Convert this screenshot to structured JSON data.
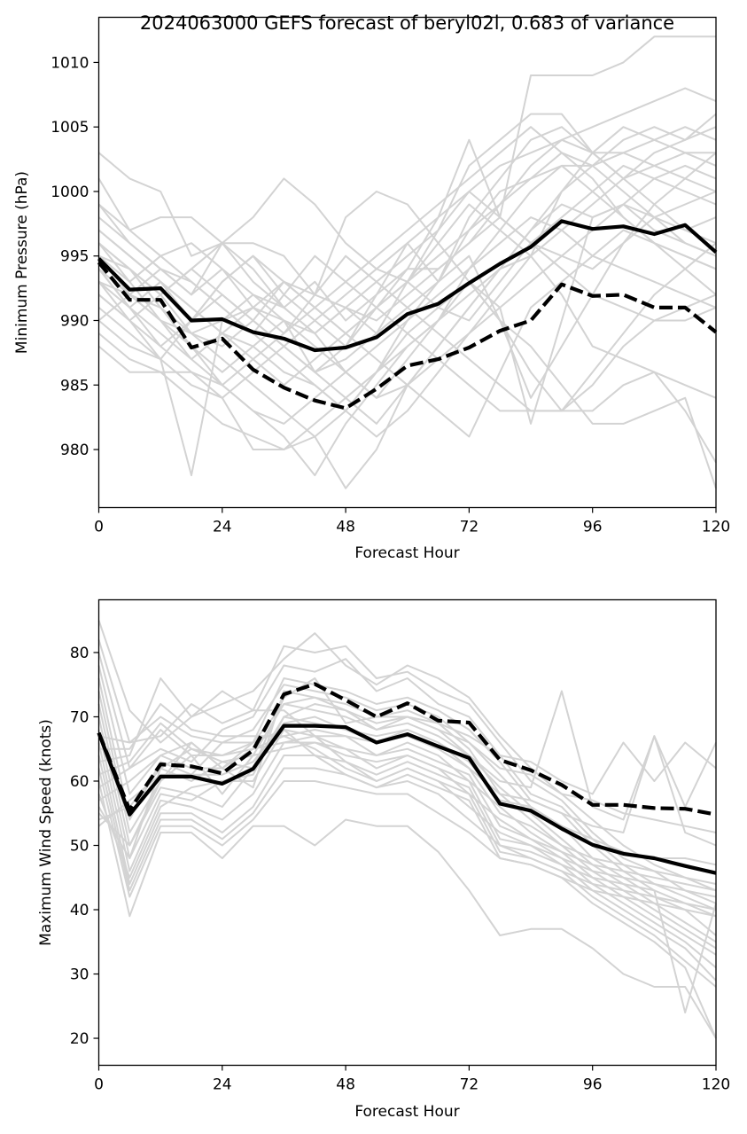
{
  "chart_data": [
    {
      "type": "line",
      "title": "2024063000 GEFS forecast of beryl02l, 0.683 of variance",
      "xlabel": "Forecast Hour",
      "ylabel": "Minimum Pressure (hPa)",
      "xlim": [
        0,
        120
      ],
      "ylim": [
        975.5,
        1013.5
      ],
      "xticks": [
        0,
        24,
        48,
        72,
        96,
        120
      ],
      "yticks": [
        980,
        985,
        990,
        995,
        1000,
        1005,
        1010
      ],
      "x": [
        0,
        6,
        12,
        18,
        24,
        30,
        36,
        42,
        48,
        54,
        60,
        66,
        72,
        78,
        84,
        90,
        96,
        102,
        108,
        114,
        120
      ],
      "colors": {
        "ensemble": "#d3d3d3",
        "mean": "#000000"
      },
      "series": [
        {
          "style": "solid",
          "values": [
            994.8,
            992.4,
            992.5,
            990.0,
            990.1,
            989.1,
            988.6,
            987.7,
            987.9,
            988.7,
            990.5,
            991.3,
            992.9,
            994.4,
            995.7,
            997.7,
            997.1,
            997.3,
            996.7,
            997.4,
            995.3
          ]
        },
        {
          "style": "dashed",
          "values": [
            994.5,
            991.6,
            991.6,
            987.9,
            988.6,
            986.2,
            984.8,
            983.8,
            983.2,
            984.7,
            986.5,
            987.0,
            987.9,
            989.2,
            990.0,
            992.8,
            991.9,
            992.0,
            991.0,
            991.0,
            989.1
          ]
        }
      ],
      "ensemble": [
        [
          1003,
          1001,
          1000,
          995,
          996,
          994,
          991,
          993,
          990,
          992,
          996,
          993,
          998,
          1001,
          1004,
          1005,
          1003,
          1003,
          1004,
          1005,
          1004
        ],
        [
          1001,
          997,
          998,
          998,
          996,
          996,
          995,
          992,
          991,
          989,
          993,
          997,
          1002,
          1004,
          1006,
          1006,
          1003,
          1001,
          1002,
          1003,
          1003
        ],
        [
          999,
          996,
          994,
          992,
          994,
          992,
          990,
          986,
          988,
          991,
          994,
          994,
          996,
          999,
          1002,
          1004,
          1005,
          1006,
          1007,
          1008,
          1007
        ],
        [
          996,
          993,
          990,
          988,
          985,
          983,
          981,
          978,
          982,
          985,
          988,
          990,
          994,
          997,
          1000,
          1002,
          1002,
          1004,
          1005,
          1004,
          1006
        ],
        [
          995,
          994,
          992,
          989,
          987,
          985,
          983,
          981,
          977,
          980,
          985,
          988,
          991,
          994,
          997,
          999,
          998,
          999,
          997,
          996,
          995
        ],
        [
          994,
          991,
          993,
          991,
          989,
          988,
          986,
          985,
          983,
          986,
          990,
          993,
          997,
          1000,
          1001,
          1002,
          1000,
          998,
          996,
          994,
          992
        ],
        [
          993,
          992,
          991,
          989,
          988,
          990,
          993,
          992,
          998,
          1000,
          999,
          996,
          993,
          990,
          988,
          985,
          982,
          982,
          983,
          984,
          977
        ],
        [
          992,
          990,
          988,
          986,
          984,
          980,
          980,
          981,
          983,
          986,
          989,
          991,
          993,
          990,
          986,
          983,
          983,
          985,
          986,
          983,
          979
        ],
        [
          989,
          987,
          986,
          984,
          982,
          981,
          980,
          982,
          984,
          986,
          988,
          990,
          992,
          994,
          995,
          997,
          999,
          1001,
          1003,
          1004,
          1005
        ],
        [
          990,
          988,
          987,
          978,
          990,
          992,
          991,
          989,
          986,
          984,
          985,
          987,
          989,
          991,
          993,
          995,
          997,
          999,
          1001,
          1002,
          1001
        ],
        [
          997,
          995,
          993,
          990,
          993,
          995,
          992,
          990,
          988,
          992,
          994,
          998,
          1004,
          998,
          996,
          995,
          994,
          996,
          998,
          999,
          1000
        ],
        [
          998,
          996,
          994,
          992,
          996,
          998,
          1001,
          999,
          996,
          994,
          993,
          991,
          990,
          993,
          996,
          998,
          1000,
          1002,
          1001,
          1000,
          999
        ],
        [
          995,
          993,
          995,
          996,
          994,
          991,
          989,
          992,
          995,
          993,
          991,
          989,
          987,
          985,
          983,
          983,
          985,
          988,
          990,
          991,
          992
        ],
        [
          991,
          989,
          987,
          990,
          992,
          990,
          988,
          986,
          984,
          982,
          985,
          988,
          991,
          994,
          997,
          1000,
          1002,
          1003,
          1002,
          1001,
          1000
        ],
        [
          996,
          994,
          992,
          994,
          996,
          993,
          991,
          989,
          991,
          993,
          995,
          997,
          1000,
          1002,
          1003,
          1004,
          1003,
          1001,
          999,
          997,
          996
        ],
        [
          993,
          991,
          989,
          987,
          985,
          987,
          989,
          991,
          993,
          995,
          997,
          999,
          1001,
          1003,
          1005,
          1003,
          1001,
          998,
          996,
          995,
          994
        ],
        [
          988,
          986,
          986,
          986,
          985,
          983,
          982,
          984,
          986,
          988,
          990,
          992,
          994,
          996,
          998,
          997,
          995,
          994,
          993,
          992,
          991
        ],
        [
          997,
          995,
          993,
          991,
          989,
          987,
          985,
          987,
          989,
          991,
          993,
          995,
          997,
          999,
          1001,
          1003,
          1002,
          1000,
          998,
          996,
          995
        ],
        [
          994,
          992,
          990,
          989,
          990,
          991,
          990,
          989,
          991,
          990,
          992,
          994,
          996,
          998,
          1009,
          1009,
          1009,
          1010,
          1012,
          1012,
          1012
        ],
        [
          992,
          990,
          992,
          994,
          992,
          990,
          988,
          986,
          987,
          989,
          991,
          993,
          995,
          990,
          984,
          988,
          992,
          996,
          999,
          1001,
          1003
        ],
        [
          996,
          994,
          991,
          988,
          986,
          988,
          990,
          988,
          986,
          984,
          987,
          990,
          993,
          991,
          982,
          990,
          998,
          999,
          998,
          997,
          998
        ],
        [
          990,
          992,
          994,
          993,
          991,
          989,
          987,
          985,
          983,
          981,
          983,
          986,
          989,
          992,
          995,
          992,
          988,
          987,
          986,
          985,
          984
        ],
        [
          999,
          997,
          995,
          993,
          991,
          989,
          992,
          995,
          993,
          991,
          989,
          987,
          985,
          983,
          983,
          983,
          986,
          989,
          992,
          994,
          996
        ],
        [
          994,
          991,
          988,
          990,
          993,
          995,
          993,
          991,
          989,
          991,
          993,
          996,
          999,
          997,
          995,
          1000,
          1003,
          1005,
          1004,
          1003,
          1002
        ],
        [
          993,
          990,
          987,
          985,
          984,
          986,
          988,
          990,
          992,
          994,
          996,
          998,
          1000,
          998,
          996,
          994,
          992,
          991,
          990,
          990,
          991
        ],
        [
          995,
          992,
          990,
          987,
          989,
          991,
          993,
          991,
          989,
          987,
          985,
          983,
          981,
          986,
          991,
          993,
          995,
          997,
          996,
          995,
          994
        ]
      ]
    },
    {
      "type": "line",
      "xlabel": "Forecast Hour",
      "ylabel": "Maximum Wind Speed (knots)",
      "xlim": [
        0,
        120
      ],
      "ylim": [
        15.8,
        88.2
      ],
      "xticks": [
        0,
        24,
        48,
        72,
        96,
        120
      ],
      "yticks": [
        20,
        30,
        40,
        50,
        60,
        70,
        80
      ],
      "x": [
        0,
        6,
        12,
        18,
        24,
        30,
        36,
        42,
        48,
        54,
        60,
        66,
        72,
        78,
        84,
        90,
        96,
        102,
        108,
        114,
        120
      ],
      "colors": {
        "ensemble": "#d3d3d3",
        "mean": "#000000"
      },
      "series": [
        {
          "style": "solid",
          "values": [
            67.5,
            54.8,
            60.7,
            60.7,
            59.6,
            61.9,
            68.6,
            68.6,
            68.4,
            66.0,
            67.3,
            65.4,
            63.6,
            56.5,
            55.4,
            52.6,
            50.1,
            48.7,
            48.0,
            46.8,
            45.7
          ]
        },
        {
          "style": "dashed",
          "values": [
            67.5,
            55.5,
            62.6,
            62.3,
            61.2,
            64.8,
            73.5,
            75.1,
            72.6,
            70.0,
            72.1,
            69.4,
            69.1,
            63.3,
            61.7,
            59.4,
            56.3,
            56.3,
            55.8,
            55.7,
            54.8
          ]
        }
      ],
      "ensemble": [
        [
          85,
          71,
          66,
          70,
          72,
          74,
          79,
          83,
          78,
          75,
          78,
          76,
          73,
          67,
          62,
          58,
          54,
          50,
          47,
          45,
          43
        ],
        [
          82,
          66,
          67,
          72,
          69,
          71,
          81,
          80,
          81,
          76,
          77,
          74,
          72,
          66,
          60,
          57,
          52,
          48,
          46,
          43,
          41
        ],
        [
          80,
          62,
          65,
          63,
          68,
          70,
          78,
          77,
          79,
          74,
          76,
          72,
          70,
          64,
          58,
          56,
          51,
          47,
          44,
          42,
          40
        ],
        [
          78,
          58,
          64,
          66,
          62,
          66,
          76,
          75,
          74,
          72,
          73,
          71,
          68,
          63,
          57,
          55,
          50,
          46,
          43,
          41,
          39
        ],
        [
          76,
          54,
          63,
          61,
          66,
          68,
          75,
          74,
          73,
          71,
          72,
          70,
          66,
          61,
          56,
          53,
          48,
          45,
          42,
          40,
          36
        ],
        [
          74,
          52,
          60,
          64,
          58,
          64,
          72,
          71,
          70,
          68,
          70,
          68,
          64,
          59,
          55,
          51,
          47,
          44,
          41,
          38,
          35
        ],
        [
          72,
          50,
          59,
          58,
          56,
          62,
          70,
          69,
          68,
          66,
          68,
          66,
          62,
          58,
          54,
          50,
          46,
          43,
          40,
          37,
          34
        ],
        [
          70,
          48,
          58,
          57,
          60,
          60,
          68,
          67,
          67,
          64,
          66,
          64,
          60,
          56,
          52,
          49,
          45,
          42,
          39,
          36,
          33
        ],
        [
          68,
          46,
          57,
          56,
          54,
          58,
          66,
          66,
          65,
          62,
          64,
          62,
          58,
          54,
          51,
          48,
          44,
          41,
          38,
          35,
          31
        ],
        [
          66,
          44,
          55,
          55,
          52,
          56,
          64,
          64,
          63,
          60,
          62,
          60,
          56,
          52,
          50,
          47,
          43,
          40,
          37,
          34,
          29
        ],
        [
          64,
          43,
          54,
          54,
          51,
          55,
          62,
          62,
          61,
          59,
          60,
          58,
          54,
          50,
          48,
          46,
          42,
          39,
          36,
          32,
          28
        ],
        [
          62,
          42,
          53,
          53,
          50,
          54,
          60,
          60,
          59,
          58,
          58,
          55,
          52,
          48,
          47,
          45,
          41,
          38,
          35,
          31,
          20
        ],
        [
          60,
          39,
          52,
          52,
          48,
          53,
          53,
          50,
          54,
          53,
          53,
          49,
          43,
          36,
          37,
          37,
          34,
          30,
          28,
          28,
          20
        ],
        [
          58,
          45,
          56,
          59,
          60,
          61,
          70,
          72,
          71,
          68,
          69,
          67,
          64,
          60,
          59,
          74,
          56,
          54,
          67,
          56,
          66
        ],
        [
          56,
          48,
          62,
          65,
          64,
          66,
          72,
          73,
          72,
          70,
          71,
          69,
          67,
          64,
          63,
          60,
          58,
          66,
          60,
          66,
          62
        ],
        [
          55,
          50,
          60,
          66,
          62,
          59,
          74,
          73,
          71,
          69,
          70,
          68,
          66,
          62,
          61,
          58,
          57,
          55,
          54,
          53,
          52
        ],
        [
          54,
          56,
          62,
          60,
          63,
          62,
          73,
          76,
          69,
          70,
          70,
          69,
          65,
          58,
          57,
          55,
          53,
          52,
          67,
          52,
          50
        ],
        [
          53,
          57,
          61,
          61,
          61,
          63,
          69,
          70,
          68,
          67,
          68,
          66,
          63,
          57,
          56,
          53,
          51,
          49,
          48,
          48,
          47
        ],
        [
          57,
          60,
          64,
          62,
          62,
          65,
          67,
          68,
          67,
          66,
          67,
          65,
          62,
          55,
          53,
          50,
          48,
          47,
          46,
          45,
          44
        ],
        [
          59,
          62,
          68,
          64,
          64,
          65,
          66,
          67,
          65,
          64,
          65,
          63,
          61,
          53,
          51,
          49,
          47,
          46,
          45,
          44,
          43
        ],
        [
          61,
          63,
          69,
          65,
          63,
          64,
          65,
          66,
          64,
          63,
          64,
          62,
          60,
          51,
          50,
          48,
          46,
          45,
          44,
          43,
          42
        ],
        [
          63,
          64,
          76,
          70,
          74,
          71,
          71,
          67,
          63,
          61,
          63,
          61,
          59,
          50,
          49,
          47,
          45,
          44,
          43,
          24,
          41
        ],
        [
          65,
          65,
          72,
          68,
          67,
          67,
          67,
          65,
          62,
          60,
          62,
          60,
          58,
          49,
          48,
          46,
          44,
          43,
          42,
          41,
          40
        ],
        [
          67,
          66,
          70,
          67,
          66,
          66,
          68,
          64,
          61,
          59,
          61,
          59,
          57,
          48,
          47,
          45,
          43,
          42,
          41,
          40,
          39
        ]
      ]
    }
  ]
}
